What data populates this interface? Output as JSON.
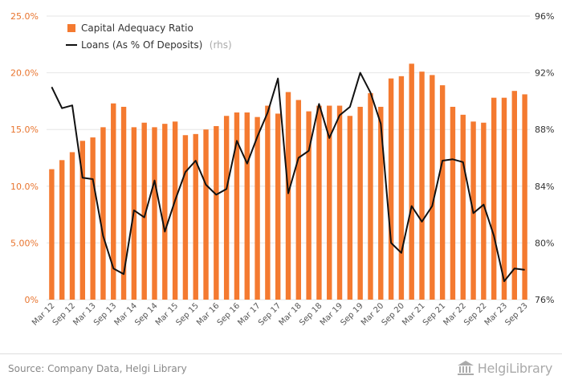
{
  "chart_data": {
    "type": "bar",
    "categories": [
      "Mar 12",
      "Jun 12",
      "Sep 12",
      "Dec 12",
      "Mar 13",
      "Jun 13",
      "Sep 13",
      "Dec 13",
      "Mar 14",
      "Jun 14",
      "Sep 14",
      "Dec 14",
      "Mar 15",
      "Jun 15",
      "Sep 15",
      "Dec 15",
      "Mar 16",
      "Jun 16",
      "Sep 16",
      "Dec 16",
      "Mar 17",
      "Jun 17",
      "Sep 17",
      "Dec 17",
      "Mar 18",
      "Jun 18",
      "Sep 18",
      "Dec 18",
      "Mar 19",
      "Jun 19",
      "Sep 19",
      "Dec 19",
      "Mar 20",
      "Jun 20",
      "Sep 20",
      "Dec 20",
      "Mar 21",
      "Jun 21",
      "Sep 21",
      "Dec 21",
      "Mar 22",
      "Jun 22",
      "Sep 22",
      "Dec 22",
      "Mar 23",
      "Jun 23",
      "Sep 23"
    ],
    "xtick_labels": [
      "Mar 12",
      "Sep 12",
      "Mar 13",
      "Sep 13",
      "Mar 14",
      "Sep 14",
      "Mar 15",
      "Sep 15",
      "Mar 16",
      "Sep 16",
      "Mar 17",
      "Sep 17",
      "Mar 18",
      "Sep 18",
      "Mar 19",
      "Sep 19",
      "Mar 20",
      "Sep 20",
      "Mar 21",
      "Sep 21",
      "Mar 22",
      "Sep 22",
      "Mar 23",
      "Sep 23"
    ],
    "series": [
      {
        "name": "Capital Adequacy Ratio",
        "kind": "bar",
        "axis": "left",
        "color": "#f47a30",
        "values": [
          11.5,
          12.3,
          13.0,
          14.0,
          14.3,
          15.2,
          17.3,
          17.0,
          15.2,
          15.6,
          15.2,
          15.5,
          15.7,
          14.5,
          14.6,
          15.0,
          15.3,
          16.2,
          16.5,
          16.5,
          16.1,
          17.1,
          16.4,
          18.3,
          17.6,
          16.6,
          17.1,
          17.1,
          17.1,
          16.2,
          17.0,
          18.2,
          17.0,
          19.5,
          19.7,
          20.8,
          20.1,
          19.8,
          18.9,
          17.0,
          16.3,
          15.7,
          15.6,
          17.8,
          17.8,
          18.4,
          18.1
        ]
      },
      {
        "name": "Loans (As % Of Deposits)",
        "name_suffix": "(rhs)",
        "kind": "line",
        "axis": "right",
        "color": "#111111",
        "values": [
          91.0,
          89.5,
          89.7,
          84.6,
          84.5,
          80.5,
          78.2,
          77.8,
          82.3,
          81.8,
          84.4,
          80.8,
          83.0,
          85.0,
          85.8,
          84.1,
          83.4,
          83.8,
          87.2,
          85.6,
          87.5,
          89.2,
          91.6,
          83.5,
          86.0,
          86.5,
          89.8,
          87.4,
          89.0,
          89.6,
          92.0,
          90.6,
          88.4,
          80.0,
          79.3,
          82.6,
          81.5,
          82.6,
          85.8,
          85.9,
          85.7,
          82.1,
          82.7,
          80.5,
          77.3,
          78.2,
          78.1
        ]
      }
    ],
    "y_left": {
      "ticks": [
        "0%",
        "5.00%",
        "10.0%",
        "15.0%",
        "20.0%",
        "25.0%"
      ],
      "ylim": [
        0,
        25
      ]
    },
    "y_right": {
      "ticks": [
        "76%",
        "80%",
        "84%",
        "88%",
        "92%",
        "96%"
      ],
      "ylim": [
        76,
        96
      ]
    },
    "grid": true,
    "legend": "top-left",
    "title": "",
    "xlabel": "",
    "ylabel": ""
  },
  "footer": {
    "source": "Source: Company Data, Helgi Library",
    "brand": "HelgiLibrary"
  }
}
